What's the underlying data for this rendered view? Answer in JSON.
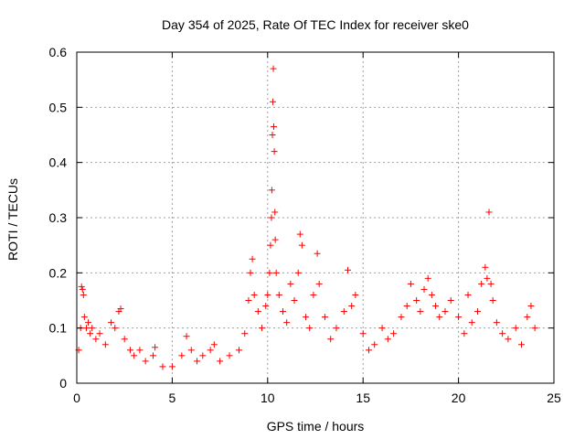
{
  "chart_data": {
    "type": "scatter",
    "title": "Day 354 of 2025, Rate Of TEC Index for receiver ske0",
    "xlabel": "GPS time / hours",
    "ylabel": "ROTI / TECUs",
    "xlim": [
      0,
      25
    ],
    "ylim": [
      0,
      0.6
    ],
    "xticks": [
      0,
      5,
      10,
      15,
      20,
      25
    ],
    "yticks": [
      0,
      0.1,
      0.2,
      0.3,
      0.4,
      0.5,
      0.6
    ],
    "grid": true,
    "marker": "+",
    "color": "#ff0000",
    "series": [
      {
        "name": "ROTI",
        "points": [
          [
            0.1,
            0.06
          ],
          [
            0.2,
            0.1
          ],
          [
            0.25,
            0.175
          ],
          [
            0.3,
            0.17
          ],
          [
            0.35,
            0.16
          ],
          [
            0.4,
            0.12
          ],
          [
            0.5,
            0.1
          ],
          [
            0.6,
            0.11
          ],
          [
            0.7,
            0.09
          ],
          [
            0.8,
            0.1
          ],
          [
            1.0,
            0.08
          ],
          [
            1.2,
            0.09
          ],
          [
            1.5,
            0.07
          ],
          [
            1.8,
            0.11
          ],
          [
            2.0,
            0.1
          ],
          [
            2.2,
            0.13
          ],
          [
            2.3,
            0.135
          ],
          [
            2.5,
            0.08
          ],
          [
            2.8,
            0.06
          ],
          [
            3.0,
            0.05
          ],
          [
            3.3,
            0.06
          ],
          [
            3.6,
            0.04
          ],
          [
            4.0,
            0.05
          ],
          [
            4.1,
            0.065
          ],
          [
            4.5,
            0.03
          ],
          [
            5.0,
            0.03
          ],
          [
            5.5,
            0.05
          ],
          [
            5.75,
            0.085
          ],
          [
            6.0,
            0.06
          ],
          [
            6.3,
            0.04
          ],
          [
            6.6,
            0.05
          ],
          [
            7.0,
            0.06
          ],
          [
            7.2,
            0.07
          ],
          [
            7.5,
            0.04
          ],
          [
            8.0,
            0.05
          ],
          [
            8.5,
            0.06
          ],
          [
            8.8,
            0.09
          ],
          [
            9.0,
            0.15
          ],
          [
            9.1,
            0.2
          ],
          [
            9.2,
            0.225
          ],
          [
            9.3,
            0.16
          ],
          [
            9.5,
            0.13
          ],
          [
            9.7,
            0.1
          ],
          [
            9.9,
            0.14
          ],
          [
            10.0,
            0.16
          ],
          [
            10.1,
            0.2
          ],
          [
            10.15,
            0.25
          ],
          [
            10.2,
            0.3
          ],
          [
            10.22,
            0.35
          ],
          [
            10.25,
            0.45
          ],
          [
            10.27,
            0.51
          ],
          [
            10.3,
            0.57
          ],
          [
            10.32,
            0.465
          ],
          [
            10.35,
            0.42
          ],
          [
            10.38,
            0.31
          ],
          [
            10.4,
            0.26
          ],
          [
            10.45,
            0.2
          ],
          [
            10.6,
            0.16
          ],
          [
            10.8,
            0.13
          ],
          [
            11.0,
            0.11
          ],
          [
            11.2,
            0.18
          ],
          [
            11.4,
            0.15
          ],
          [
            11.6,
            0.2
          ],
          [
            11.7,
            0.27
          ],
          [
            11.8,
            0.25
          ],
          [
            12.0,
            0.12
          ],
          [
            12.2,
            0.1
          ],
          [
            12.4,
            0.16
          ],
          [
            12.6,
            0.235
          ],
          [
            12.7,
            0.18
          ],
          [
            13.0,
            0.12
          ],
          [
            13.3,
            0.08
          ],
          [
            13.6,
            0.1
          ],
          [
            14.0,
            0.13
          ],
          [
            14.2,
            0.205
          ],
          [
            14.4,
            0.14
          ],
          [
            14.6,
            0.16
          ],
          [
            15.0,
            0.09
          ],
          [
            15.3,
            0.06
          ],
          [
            15.6,
            0.07
          ],
          [
            16.0,
            0.1
          ],
          [
            16.3,
            0.08
          ],
          [
            16.6,
            0.09
          ],
          [
            17.0,
            0.12
          ],
          [
            17.3,
            0.14
          ],
          [
            17.5,
            0.18
          ],
          [
            17.8,
            0.15
          ],
          [
            18.0,
            0.13
          ],
          [
            18.2,
            0.17
          ],
          [
            18.4,
            0.19
          ],
          [
            18.6,
            0.16
          ],
          [
            18.8,
            0.14
          ],
          [
            19.0,
            0.12
          ],
          [
            19.3,
            0.13
          ],
          [
            19.6,
            0.15
          ],
          [
            20.0,
            0.12
          ],
          [
            20.3,
            0.09
          ],
          [
            20.5,
            0.16
          ],
          [
            20.7,
            0.11
          ],
          [
            21.0,
            0.13
          ],
          [
            21.2,
            0.18
          ],
          [
            21.4,
            0.21
          ],
          [
            21.5,
            0.19
          ],
          [
            21.6,
            0.31
          ],
          [
            21.7,
            0.18
          ],
          [
            21.8,
            0.15
          ],
          [
            22.0,
            0.11
          ],
          [
            22.3,
            0.09
          ],
          [
            22.6,
            0.08
          ],
          [
            23.0,
            0.1
          ],
          [
            23.3,
            0.07
          ],
          [
            23.6,
            0.12
          ],
          [
            23.8,
            0.14
          ],
          [
            24.0,
            0.1
          ]
        ]
      }
    ]
  }
}
